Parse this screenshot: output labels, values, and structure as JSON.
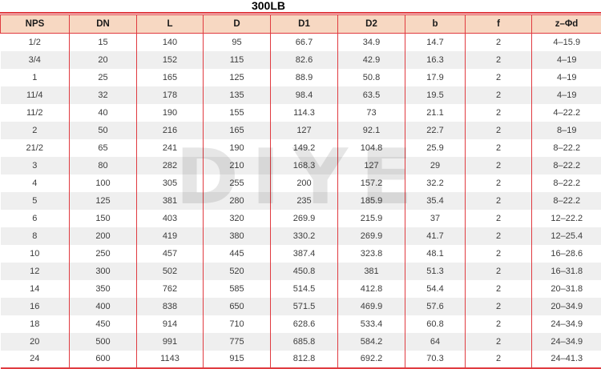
{
  "title": "300LB",
  "watermark": "DIYE",
  "colors": {
    "border_red": "#e03b40",
    "header_bg": "#f7d8c2",
    "alt_row_bg": "#efefef",
    "cell_text": "#3c3c3c"
  },
  "table": {
    "headers": [
      "NPS",
      "DN",
      "L",
      "D",
      "D1",
      "D2",
      "b",
      "f",
      "z–Φd"
    ],
    "rows": [
      [
        "1/2",
        "15",
        "140",
        "95",
        "66.7",
        "34.9",
        "14.7",
        "2",
        "4–15.9"
      ],
      [
        "3/4",
        "20",
        "152",
        "115",
        "82.6",
        "42.9",
        "16.3",
        "2",
        "4–19"
      ],
      [
        "1",
        "25",
        "165",
        "125",
        "88.9",
        "50.8",
        "17.9",
        "2",
        "4–19"
      ],
      [
        "11/4",
        "32",
        "178",
        "135",
        "98.4",
        "63.5",
        "19.5",
        "2",
        "4–19"
      ],
      [
        "11/2",
        "40",
        "190",
        "155",
        "114.3",
        "73",
        "21.1",
        "2",
        "4–22.2"
      ],
      [
        "2",
        "50",
        "216",
        "165",
        "127",
        "92.1",
        "22.7",
        "2",
        "8–19"
      ],
      [
        "21/2",
        "65",
        "241",
        "190",
        "149.2",
        "104.8",
        "25.9",
        "2",
        "8–22.2"
      ],
      [
        "3",
        "80",
        "282",
        "210",
        "168.3",
        "127",
        "29",
        "2",
        "8–22.2"
      ],
      [
        "4",
        "100",
        "305",
        "255",
        "200",
        "157.2",
        "32.2",
        "2",
        "8–22.2"
      ],
      [
        "5",
        "125",
        "381",
        "280",
        "235",
        "185.9",
        "35.4",
        "2",
        "8–22.2"
      ],
      [
        "6",
        "150",
        "403",
        "320",
        "269.9",
        "215.9",
        "37",
        "2",
        "12–22.2"
      ],
      [
        "8",
        "200",
        "419",
        "380",
        "330.2",
        "269.9",
        "41.7",
        "2",
        "12–25.4"
      ],
      [
        "10",
        "250",
        "457",
        "445",
        "387.4",
        "323.8",
        "48.1",
        "2",
        "16–28.6"
      ],
      [
        "12",
        "300",
        "502",
        "520",
        "450.8",
        "381",
        "51.3",
        "2",
        "16–31.8"
      ],
      [
        "14",
        "350",
        "762",
        "585",
        "514.5",
        "412.8",
        "54.4",
        "2",
        "20–31.8"
      ],
      [
        "16",
        "400",
        "838",
        "650",
        "571.5",
        "469.9",
        "57.6",
        "2",
        "20–34.9"
      ],
      [
        "18",
        "450",
        "914",
        "710",
        "628.6",
        "533.4",
        "60.8",
        "2",
        "24–34.9"
      ],
      [
        "20",
        "500",
        "991",
        "775",
        "685.8",
        "584.2",
        "64",
        "2",
        "24–34.9"
      ],
      [
        "24",
        "600",
        "1143",
        "915",
        "812.8",
        "692.2",
        "70.3",
        "2",
        "24–41.3"
      ]
    ]
  }
}
